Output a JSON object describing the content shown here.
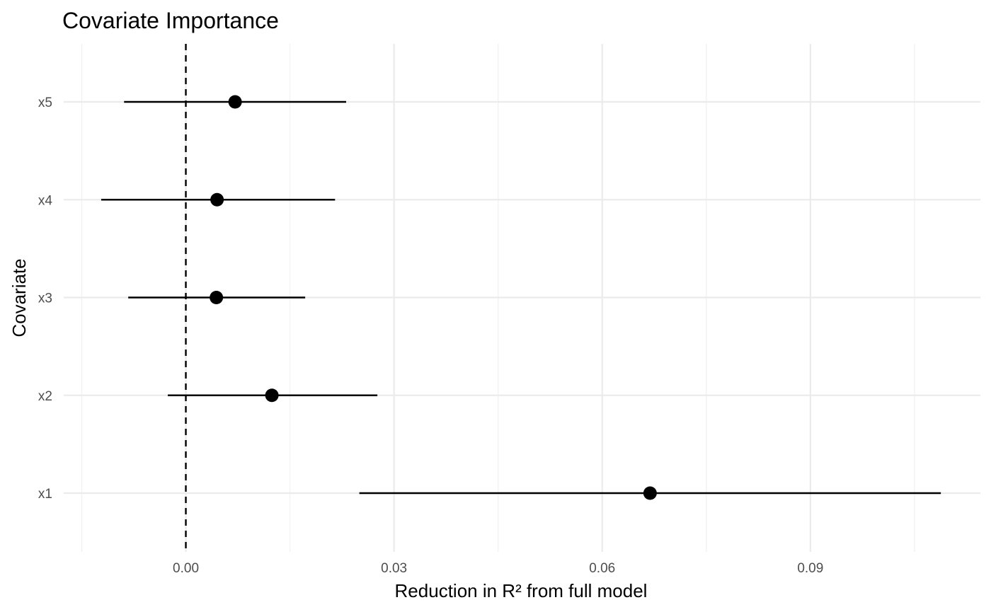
{
  "chart_data": {
    "type": "scatter",
    "title": "Covariate Importance",
    "xlabel": "Reduction in R² from full model",
    "ylabel": "Covariate",
    "x_ticks": [
      0.0,
      0.03,
      0.06,
      0.09
    ],
    "x_tick_labels": [
      "0.00",
      "0.03",
      "0.06",
      "0.09"
    ],
    "xlim": [
      -0.0176,
      0.1145
    ],
    "categories": [
      "x1",
      "x2",
      "x3",
      "x4",
      "x5"
    ],
    "points": [
      {
        "category": "x1",
        "estimate": 0.0669,
        "lower": 0.025,
        "upper": 0.1088
      },
      {
        "category": "x2",
        "estimate": 0.0124,
        "lower": -0.0026,
        "upper": 0.0276
      },
      {
        "category": "x3",
        "estimate": 0.0044,
        "lower": -0.0083,
        "upper": 0.0172
      },
      {
        "category": "x4",
        "estimate": 0.0045,
        "lower": -0.0122,
        "upper": 0.0215
      },
      {
        "category": "x5",
        "estimate": 0.0071,
        "lower": -0.0089,
        "upper": 0.0231
      }
    ],
    "reference_line": {
      "x": 0,
      "style": "dashed"
    },
    "grid": true,
    "legend": "none",
    "colors": {
      "points": "#000000",
      "grid": "#ebebeb",
      "background": "#ffffff"
    }
  }
}
